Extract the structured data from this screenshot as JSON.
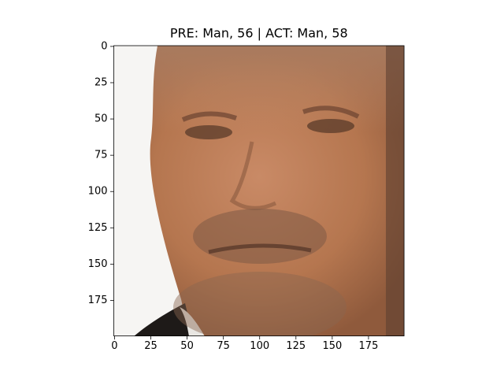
{
  "chart_data": {
    "type": "image",
    "title": "PRE: Man, 56 | ACT: Man, 58",
    "xlim": [
      -0.5,
      199.5
    ],
    "ylim": [
      199.5,
      -0.5
    ],
    "xticks": [
      0,
      25,
      50,
      75,
      100,
      125,
      150,
      175
    ],
    "yticks": [
      0,
      25,
      50,
      75,
      100,
      125,
      150,
      175
    ]
  }
}
